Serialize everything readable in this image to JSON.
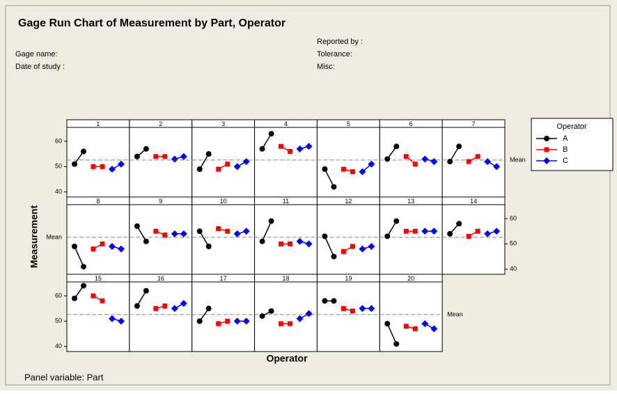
{
  "header": {
    "gage_name": "Gage name:",
    "date_of_study": "Date of study :",
    "reported_by": "Reported by :",
    "tolerance": "Tolerance:",
    "misc": "Misc:"
  },
  "chart_data": {
    "type": "line",
    "title": "Gage Run Chart of Measurement by Part, Operator",
    "y_label": "Measurement",
    "x_label": "Operator",
    "footnote": "Panel variable: Part",
    "legend_title": "Operator",
    "categories": [
      "1",
      "2",
      "3",
      "4",
      "5",
      "6",
      "7",
      "8",
      "9",
      "10",
      "11",
      "12",
      "13",
      "14",
      "15",
      "16",
      "17",
      "18",
      "19",
      "20"
    ],
    "ylim": [
      38,
      65.5
    ],
    "yticks": [
      40,
      50,
      60
    ],
    "mean": 52.6,
    "mean_label": "Mean",
    "series": [
      {
        "name": "A",
        "color": "#000000",
        "marker": "circle",
        "values": [
          [
            51,
            56
          ],
          [
            54,
            57
          ],
          [
            49,
            55
          ],
          [
            57,
            63
          ],
          [
            49,
            42
          ],
          [
            53,
            58
          ],
          [
            52,
            58
          ],
          [
            49,
            41
          ],
          [
            57,
            51
          ],
          [
            55,
            49
          ],
          [
            51,
            59
          ],
          [
            53,
            45
          ],
          [
            53,
            59
          ],
          [
            54,
            58
          ],
          [
            59,
            64
          ],
          [
            56,
            62
          ],
          [
            50,
            55
          ],
          [
            52,
            54
          ],
          [
            58,
            58
          ],
          [
            49,
            41
          ]
        ]
      },
      {
        "name": "B",
        "color": "#ff0000",
        "marker": "square",
        "values": [
          [
            50,
            50
          ],
          [
            54,
            54
          ],
          [
            49,
            51
          ],
          [
            58,
            56
          ],
          [
            49,
            48
          ],
          [
            54,
            51
          ],
          [
            52,
            54
          ],
          [
            48,
            50
          ],
          [
            55,
            53.5
          ],
          [
            56,
            55
          ],
          [
            50,
            50
          ],
          [
            47,
            49
          ],
          [
            55,
            55
          ],
          [
            53,
            55
          ],
          [
            60,
            58
          ],
          [
            55,
            56
          ],
          [
            49,
            50
          ],
          [
            49,
            49
          ],
          [
            55,
            54
          ],
          [
            48,
            47
          ]
        ]
      },
      {
        "name": "C",
        "color": "#0000ff",
        "marker": "diamond",
        "values": [
          [
            49,
            51
          ],
          [
            53,
            54
          ],
          [
            50,
            52
          ],
          [
            57,
            58
          ],
          [
            48,
            51
          ],
          [
            53,
            52
          ],
          [
            52,
            50
          ],
          [
            49,
            48
          ],
          [
            54,
            54
          ],
          [
            54,
            55
          ],
          [
            51,
            50
          ],
          [
            48,
            49
          ],
          [
            55,
            55
          ],
          [
            54,
            55
          ],
          [
            51,
            50
          ],
          [
            55,
            57
          ],
          [
            50,
            50
          ],
          [
            51,
            53
          ],
          [
            55,
            55
          ],
          [
            49,
            47
          ]
        ]
      }
    ]
  }
}
